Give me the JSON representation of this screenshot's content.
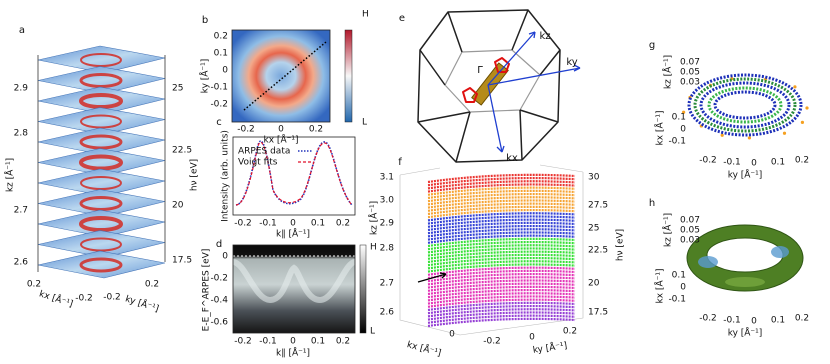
{
  "panels": {
    "a": {
      "label": "a",
      "y_label": "kz [Å⁻¹]",
      "y_ticks": [
        "2.9",
        "2.8",
        "2.7",
        "2.6"
      ],
      "y2_label": "hν [eV]",
      "y2_ticks": [
        "25",
        "22.5",
        "20",
        "17.5"
      ],
      "x_label": "kx [Å⁻¹]",
      "x_ticks": [
        "0.2",
        "-0.2"
      ],
      "z_label": "ky [Å⁻¹]",
      "z_ticks": [
        "-0.2",
        "0.2"
      ]
    },
    "b": {
      "label": "b",
      "y_label": "ky [Å⁻¹]",
      "y_ticks": [
        "0.2",
        "0.1",
        "0",
        "-0.1",
        "-0.2"
      ],
      "x_label": "kx [Å⁻¹]",
      "x_ticks": [
        "-0.2",
        "0",
        "0.2"
      ],
      "colorbar": [
        "H",
        "L"
      ]
    },
    "c": {
      "label": "c",
      "y_label": "Intensity (arb. units)",
      "legend": [
        "ARPES data",
        "Voigt fits"
      ],
      "x_label": "k∥ [Å⁻¹]",
      "x_ticks": [
        "-0.2",
        "-0.1",
        "0",
        "0.1",
        "0.2"
      ]
    },
    "d": {
      "label": "d",
      "y_label": "E-E_F^ARPES [eV]",
      "y_ticks": [
        "0",
        "-0.2",
        "-0.4",
        "-0.6"
      ],
      "x_label": "k∥ [Å⁻¹]",
      "x_ticks": [
        "-0.2",
        "-0.1",
        "0",
        "0.1",
        "0.2"
      ],
      "colorbar": [
        "H",
        "L"
      ]
    },
    "e": {
      "label": "e",
      "axes": [
        "kz",
        "ky",
        "kx"
      ],
      "point": "Γ"
    },
    "f": {
      "label": "f",
      "y_label": "kz [Å⁻¹]",
      "y_ticks": [
        "3.1",
        "3.0",
        "2.9",
        "2.8",
        "2.7",
        "2.6"
      ],
      "y2_label": "hν [eV]",
      "y2_ticks": [
        "30",
        "27.5",
        "25",
        "22.5",
        "20",
        "17.5"
      ],
      "x_label": "kx [Å⁻¹]",
      "x_ticks": [
        "0",
        "-0.2"
      ],
      "z_label": "ky [Å⁻¹]",
      "z_ticks": [
        "0",
        "0.2"
      ]
    },
    "g": {
      "label": "g",
      "z_label": "kz [Å⁻¹]",
      "z_ticks": [
        "0.07",
        "0.05",
        "0.03"
      ],
      "x_label": "kx [Å⁻¹]",
      "x_ticks": [
        "0.1",
        "0",
        "-0.1"
      ],
      "y_label": "ky [Å⁻¹]",
      "y_ticks": [
        "-0.2",
        "-0.1",
        "0",
        "0.1",
        "0.2"
      ]
    },
    "h": {
      "label": "h",
      "z_label": "kz [Å⁻¹]",
      "z_ticks": [
        "0.07",
        "0.05",
        "0.03"
      ],
      "x_label": "kx [Å⁻¹]",
      "x_ticks": [
        "0.1",
        "0",
        "-0.1"
      ],
      "y_label": "ky [Å⁻¹]",
      "y_ticks": [
        "-0.2",
        "-0.1",
        "0",
        "0.1",
        "0.2"
      ]
    }
  }
}
